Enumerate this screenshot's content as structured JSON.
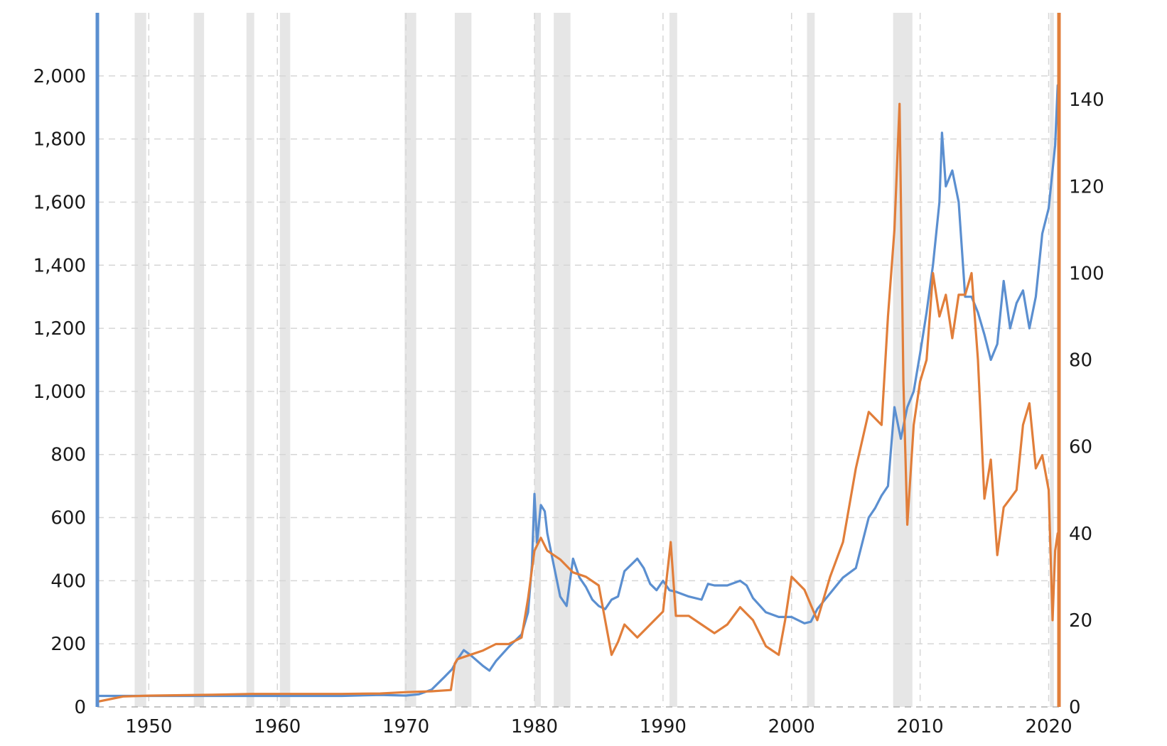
{
  "chart_data": {
    "type": "line",
    "title": "",
    "xlabel": "",
    "x_ticks": [
      1950,
      1960,
      1970,
      1980,
      1990,
      2000,
      2010,
      2020
    ],
    "xlim": [
      1946,
      2020.8
    ],
    "y_left": {
      "range": [
        0,
        2200
      ],
      "ticks": [
        0,
        200,
        400,
        600,
        800,
        1000,
        1200,
        1400,
        1600,
        1800,
        2000
      ],
      "tick_labels": [
        "0",
        "200",
        "400",
        "600",
        "800",
        "1,000",
        "1,200",
        "1,400",
        "1,600",
        "1,800",
        "2,000"
      ],
      "color": "#5b8fd0"
    },
    "y_right": {
      "range": [
        0,
        160
      ],
      "ticks": [
        0,
        20,
        40,
        60,
        80,
        100,
        120,
        140
      ],
      "tick_labels": [
        "0",
        "20",
        "40",
        "60",
        "80",
        "100",
        "120",
        "140"
      ],
      "color": "#e17e3a"
    },
    "grid": true,
    "legend": "none",
    "recessions": [
      [
        1948.9,
        1949.8
      ],
      [
        1953.5,
        1954.3
      ],
      [
        1957.6,
        1958.2
      ],
      [
        1960.2,
        1961.0
      ],
      [
        1969.9,
        1970.8
      ],
      [
        1973.8,
        1975.1
      ],
      [
        1980.0,
        1980.5
      ],
      [
        1981.5,
        1982.8
      ],
      [
        1990.5,
        1991.1
      ],
      [
        2001.2,
        2001.8
      ],
      [
        2007.9,
        2009.4
      ],
      [
        2020.1,
        2020.4
      ]
    ],
    "series": [
      {
        "axis": "left",
        "color": "#5b8fd0",
        "points": [
          [
            1946.0,
            35
          ],
          [
            1950.0,
            35
          ],
          [
            1955.0,
            35
          ],
          [
            1960.0,
            35
          ],
          [
            1965.0,
            35
          ],
          [
            1968.0,
            38
          ],
          [
            1970.0,
            36
          ],
          [
            1971.0,
            40
          ],
          [
            1972.0,
            55
          ],
          [
            1973.0,
            95
          ],
          [
            1973.6,
            120
          ],
          [
            1974.0,
            150
          ],
          [
            1974.5,
            180
          ],
          [
            1975.0,
            165
          ],
          [
            1976.0,
            130
          ],
          [
            1976.5,
            115
          ],
          [
            1977.0,
            145
          ],
          [
            1978.0,
            190
          ],
          [
            1979.0,
            230
          ],
          [
            1979.5,
            300
          ],
          [
            1979.8,
            450
          ],
          [
            1980.0,
            675
          ],
          [
            1980.2,
            520
          ],
          [
            1980.5,
            640
          ],
          [
            1980.8,
            620
          ],
          [
            1981.0,
            550
          ],
          [
            1981.5,
            450
          ],
          [
            1982.0,
            350
          ],
          [
            1982.5,
            320
          ],
          [
            1983.0,
            470
          ],
          [
            1983.5,
            410
          ],
          [
            1984.0,
            380
          ],
          [
            1984.5,
            340
          ],
          [
            1985.0,
            320
          ],
          [
            1985.5,
            310
          ],
          [
            1986.0,
            340
          ],
          [
            1986.5,
            350
          ],
          [
            1987.0,
            430
          ],
          [
            1988.0,
            470
          ],
          [
            1988.5,
            440
          ],
          [
            1989.0,
            390
          ],
          [
            1989.5,
            370
          ],
          [
            1990.0,
            400
          ],
          [
            1990.5,
            370
          ],
          [
            1991.0,
            365
          ],
          [
            1992.0,
            350
          ],
          [
            1993.0,
            340
          ],
          [
            1993.5,
            390
          ],
          [
            1994.0,
            385
          ],
          [
            1995.0,
            385
          ],
          [
            1996.0,
            400
          ],
          [
            1996.5,
            385
          ],
          [
            1997.0,
            345
          ],
          [
            1998.0,
            300
          ],
          [
            1999.0,
            285
          ],
          [
            2000.0,
            285
          ],
          [
            2001.0,
            265
          ],
          [
            2001.5,
            270
          ],
          [
            2002.0,
            310
          ],
          [
            2003.0,
            360
          ],
          [
            2004.0,
            410
          ],
          [
            2005.0,
            440
          ],
          [
            2006.0,
            600
          ],
          [
            2006.5,
            630
          ],
          [
            2007.0,
            670
          ],
          [
            2007.5,
            700
          ],
          [
            2008.0,
            950
          ],
          [
            2008.5,
            850
          ],
          [
            2009.0,
            950
          ],
          [
            2009.5,
            1000
          ],
          [
            2010.0,
            1120
          ],
          [
            2010.5,
            1250
          ],
          [
            2011.0,
            1400
          ],
          [
            2011.5,
            1600
          ],
          [
            2011.7,
            1820
          ],
          [
            2012.0,
            1650
          ],
          [
            2012.5,
            1700
          ],
          [
            2013.0,
            1600
          ],
          [
            2013.5,
            1300
          ],
          [
            2014.0,
            1300
          ],
          [
            2014.5,
            1250
          ],
          [
            2015.0,
            1180
          ],
          [
            2015.5,
            1100
          ],
          [
            2016.0,
            1150
          ],
          [
            2016.5,
            1350
          ],
          [
            2017.0,
            1200
          ],
          [
            2017.5,
            1280
          ],
          [
            2018.0,
            1320
          ],
          [
            2018.5,
            1200
          ],
          [
            2019.0,
            1300
          ],
          [
            2019.5,
            1500
          ],
          [
            2020.0,
            1580
          ],
          [
            2020.5,
            1780
          ],
          [
            2020.7,
            1970
          ]
        ]
      },
      {
        "axis": "right",
        "color": "#e17e3a",
        "points": [
          [
            1946.0,
            1.2
          ],
          [
            1947.0,
            1.8
          ],
          [
            1948.0,
            2.4
          ],
          [
            1950.0,
            2.6
          ],
          [
            1955.0,
            2.8
          ],
          [
            1958.0,
            3.0
          ],
          [
            1960.0,
            3.0
          ],
          [
            1965.0,
            3.0
          ],
          [
            1968.0,
            3.1
          ],
          [
            1970.0,
            3.4
          ],
          [
            1972.0,
            3.6
          ],
          [
            1973.5,
            3.9
          ],
          [
            1973.8,
            10.0
          ],
          [
            1974.0,
            11.0
          ],
          [
            1975.0,
            12.0
          ],
          [
            1976.0,
            13.0
          ],
          [
            1977.0,
            14.5
          ],
          [
            1978.0,
            14.5
          ],
          [
            1979.0,
            16.0
          ],
          [
            1979.5,
            25.0
          ],
          [
            1980.0,
            36.0
          ],
          [
            1980.5,
            39.0
          ],
          [
            1981.0,
            36.0
          ],
          [
            1982.0,
            34.0
          ],
          [
            1983.0,
            31.0
          ],
          [
            1984.0,
            30.0
          ],
          [
            1985.0,
            28.0
          ],
          [
            1986.0,
            12.0
          ],
          [
            1986.5,
            15.0
          ],
          [
            1987.0,
            19.0
          ],
          [
            1988.0,
            16.0
          ],
          [
            1989.0,
            19.0
          ],
          [
            1990.0,
            22.0
          ],
          [
            1990.6,
            38.0
          ],
          [
            1991.0,
            21.0
          ],
          [
            1992.0,
            21.0
          ],
          [
            1993.0,
            19.0
          ],
          [
            1994.0,
            17.0
          ],
          [
            1995.0,
            19.0
          ],
          [
            1996.0,
            23.0
          ],
          [
            1997.0,
            20.0
          ],
          [
            1998.0,
            14.0
          ],
          [
            1999.0,
            12.0
          ],
          [
            1999.5,
            20.0
          ],
          [
            2000.0,
            30.0
          ],
          [
            2001.0,
            27.0
          ],
          [
            2002.0,
            20.0
          ],
          [
            2003.0,
            30.0
          ],
          [
            2004.0,
            38.0
          ],
          [
            2005.0,
            55.0
          ],
          [
            2006.0,
            68.0
          ],
          [
            2007.0,
            65.0
          ],
          [
            2007.5,
            90.0
          ],
          [
            2008.0,
            110.0
          ],
          [
            2008.4,
            139.0
          ],
          [
            2008.7,
            75.0
          ],
          [
            2009.0,
            42.0
          ],
          [
            2009.5,
            65.0
          ],
          [
            2010.0,
            75.0
          ],
          [
            2010.5,
            80.0
          ],
          [
            2011.0,
            100.0
          ],
          [
            2011.5,
            90.0
          ],
          [
            2012.0,
            95.0
          ],
          [
            2012.5,
            85.0
          ],
          [
            2013.0,
            95.0
          ],
          [
            2013.5,
            95.0
          ],
          [
            2014.0,
            100.0
          ],
          [
            2014.5,
            80.0
          ],
          [
            2015.0,
            48.0
          ],
          [
            2015.5,
            57.0
          ],
          [
            2016.0,
            35.0
          ],
          [
            2016.5,
            46.0
          ],
          [
            2017.0,
            48.0
          ],
          [
            2017.5,
            50.0
          ],
          [
            2018.0,
            65.0
          ],
          [
            2018.5,
            70.0
          ],
          [
            2019.0,
            55.0
          ],
          [
            2019.5,
            58.0
          ],
          [
            2020.0,
            50.0
          ],
          [
            2020.3,
            20.0
          ],
          [
            2020.5,
            36.0
          ],
          [
            2020.7,
            40.0
          ]
        ]
      }
    ]
  }
}
